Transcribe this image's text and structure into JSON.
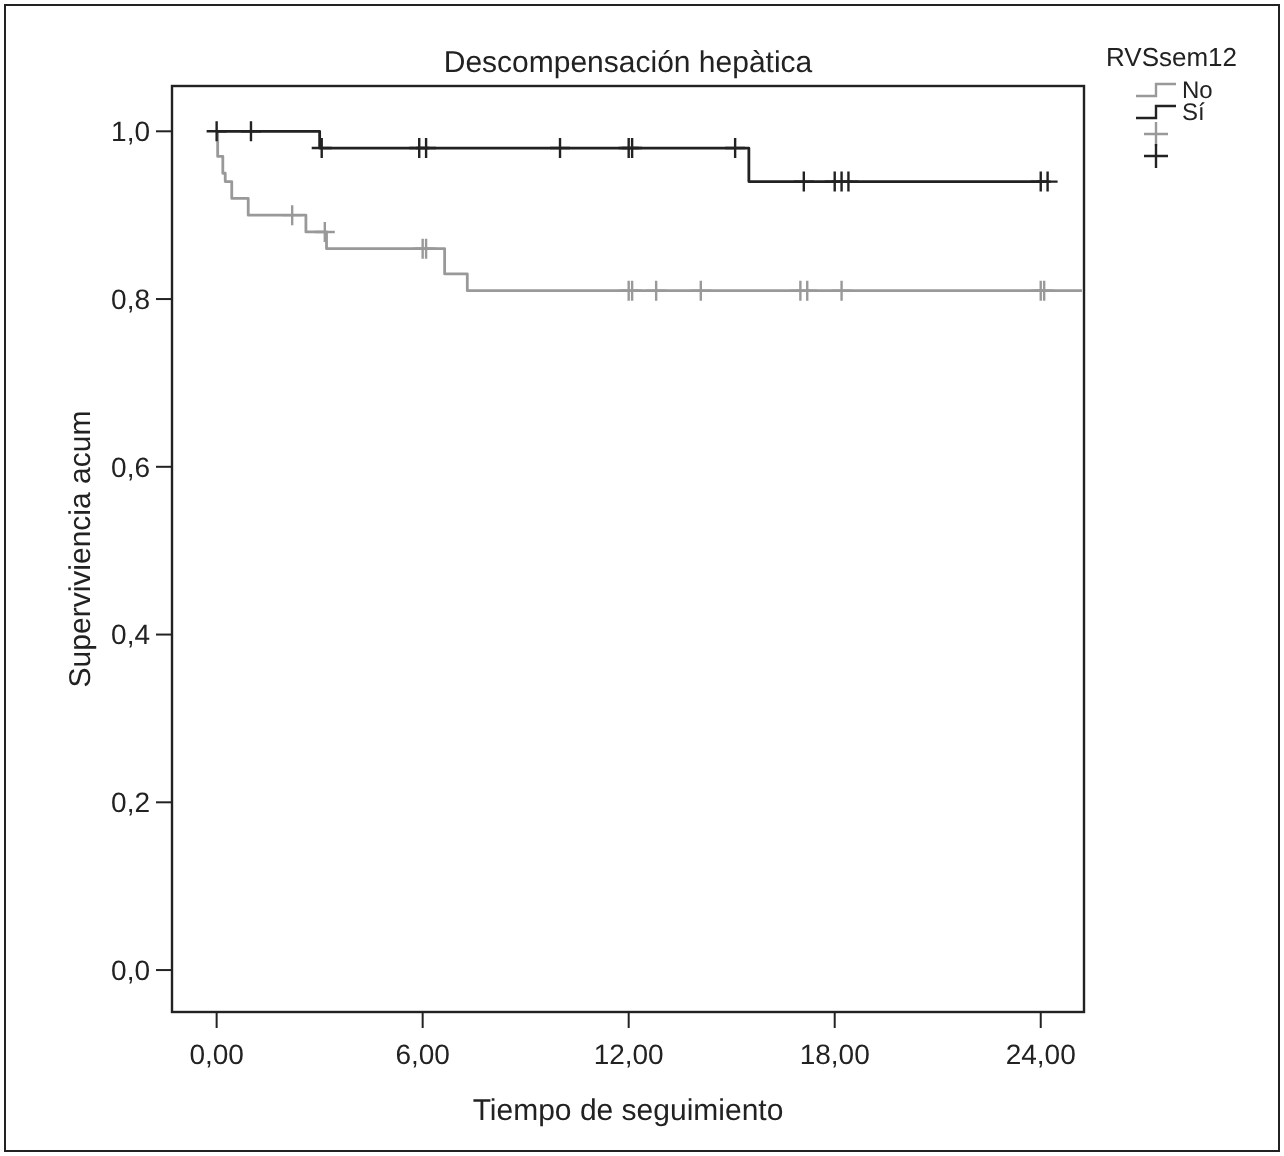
{
  "chart_data": {
    "type": "step",
    "title": "Descompensación hepàtica",
    "xlabel": "Tiempo de seguimiento",
    "ylabel": "Superviviencia acum",
    "legend_title": "RVSsem12",
    "legend": "right",
    "grid": false,
    "xlim": [
      -1.3,
      25.26
    ],
    "ylim": [
      -0.05,
      1.054
    ],
    "xticks": [
      {
        "value": 0,
        "label": "0,00"
      },
      {
        "value": 6,
        "label": "6,00"
      },
      {
        "value": 12,
        "label": "12,00"
      },
      {
        "value": 18,
        "label": "18,00"
      },
      {
        "value": 24,
        "label": "24,00"
      }
    ],
    "yticks": [
      {
        "value": 0,
        "label": "0,0"
      },
      {
        "value": 0.2,
        "label": "0,2"
      },
      {
        "value": 0.4,
        "label": "0,4"
      },
      {
        "value": 0.6,
        "label": "0,6"
      },
      {
        "value": 0.8,
        "label": "0,8"
      },
      {
        "value": 1,
        "label": "1,0"
      }
    ],
    "series": [
      {
        "name": "No",
        "color": "#999999",
        "x": [
          0,
          0.03,
          0.18,
          0.25,
          0.44,
          0.92,
          2.6,
          3.2,
          6.64,
          7.3,
          25.2
        ],
        "values": [
          1,
          0.97,
          0.95,
          0.94,
          0.92,
          0.9,
          0.88,
          0.86,
          0.83,
          0.81,
          0.81
        ]
      },
      {
        "name": "Sí",
        "color": "#222222",
        "x": [
          0,
          3.0,
          15.5,
          24.2
        ],
        "values": [
          1,
          0.98,
          0.94,
          0.94
        ]
      },
      {
        "type": "scatter",
        "color": "#999999",
        "marker": "cross",
        "x": [
          2.2,
          3.15,
          6.0,
          6.1,
          12.0,
          12.1,
          12.8,
          14.1,
          17.0,
          17.2,
          18.2,
          24.0,
          24.1
        ],
        "values": [
          0.9,
          0.88,
          0.86,
          0.86,
          0.81,
          0.81,
          0.81,
          0.81,
          0.81,
          0.81,
          0.81,
          0.81,
          0.81
        ]
      },
      {
        "type": "scatter",
        "color": "#222222",
        "marker": "cross",
        "x": [
          0,
          1.0,
          3.06,
          5.9,
          6.1,
          10.0,
          12.0,
          12.1,
          15.1,
          17.1,
          18.0,
          18.2,
          18.4,
          24.0,
          24.2
        ],
        "values": [
          1,
          1,
          0.98,
          0.98,
          0.98,
          0.98,
          0.98,
          0.98,
          0.98,
          0.94,
          0.94,
          0.94,
          0.94,
          0.94,
          0.94
        ]
      }
    ]
  }
}
